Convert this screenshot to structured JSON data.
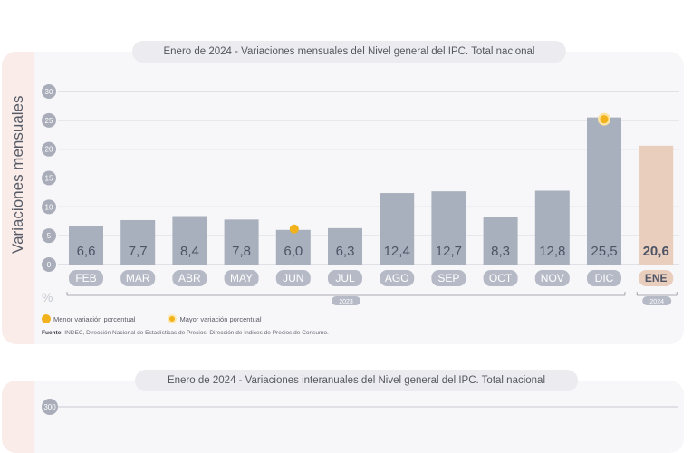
{
  "chart1": {
    "title_prefix": "Enero de 2024",
    "title_sep": " - ",
    "title_desc": "Variaciones mensuales del Nivel general del IPC. Total nacional",
    "ylabel": "Variaciones mensuales",
    "unit": "%",
    "legend": {
      "min_label": "Menor variación porcentual",
      "max_label": "Mayor variación porcentual"
    },
    "source_label": "Fuente:",
    "source_text": " INDEC, Dirección Nacional de Estadísticas de Precios. Dirección de Índices de Precios de Consumo."
  },
  "chart2": {
    "title_prefix": "Enero de 2024",
    "title_sep": " - ",
    "title_desc": "Variaciones interanuales del Nivel general del IPC. Total nacional",
    "first_tick": "300"
  },
  "colors": {
    "bar": "#a9b0bd",
    "bar_highlight": "#e9cdbd",
    "marker": "#f2b21c",
    "grid": "#b8bbc4",
    "value_text": "#4d5466"
  },
  "chart_data": {
    "type": "bar",
    "categories": [
      "FEB",
      "MAR",
      "ABR",
      "MAY",
      "JUN",
      "JUL",
      "AGO",
      "SEP",
      "OCT",
      "NOV",
      "DIC",
      "ENE"
    ],
    "values": [
      6.6,
      7.7,
      8.4,
      7.8,
      6.0,
      6.3,
      12.4,
      12.7,
      8.3,
      12.8,
      25.5,
      20.6
    ],
    "value_labels": [
      "6,6",
      "7,7",
      "8,4",
      "7,8",
      "6,0",
      "6,3",
      "12,4",
      "12,7",
      "8,3",
      "12,8",
      "25,5",
      "20,6"
    ],
    "ylim": [
      0,
      30
    ],
    "yticks": [
      0,
      5,
      10,
      15,
      20,
      25,
      30
    ],
    "ylabel": "Variaciones mensuales",
    "year_groups": [
      {
        "label": "2023",
        "start": 0,
        "end": 10
      },
      {
        "label": "2024",
        "start": 11,
        "end": 11
      }
    ],
    "highlight_index": 11,
    "min_index": 4,
    "max_index": 10,
    "grid": true
  }
}
